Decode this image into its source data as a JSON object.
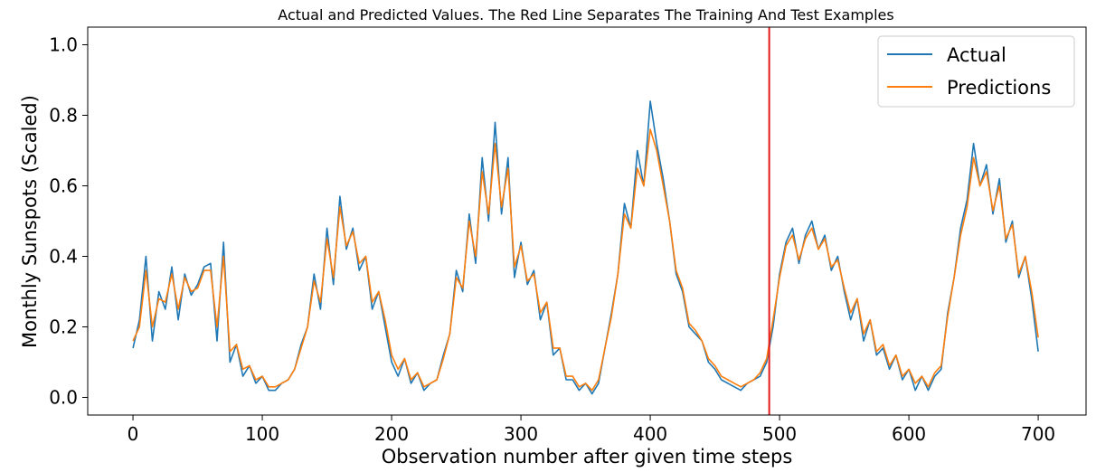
{
  "chart_data": {
    "type": "line",
    "title": "Actual and Predicted Values. The Red Line Separates The Training And Test Examples",
    "xlabel": "Observation number after given time steps",
    "ylabel": "Monthly Sunspots (Scaled)",
    "xlim": [
      -35,
      737
    ],
    "ylim": [
      -0.05,
      1.05
    ],
    "xticks": [
      0,
      100,
      200,
      300,
      400,
      500,
      600,
      700
    ],
    "yticks": [
      0.0,
      0.2,
      0.4,
      0.6,
      0.8,
      1.0
    ],
    "xtick_labels": [
      "0",
      "100",
      "200",
      "300",
      "400",
      "500",
      "600",
      "700"
    ],
    "ytick_labels": [
      "0.0",
      "0.2",
      "0.4",
      "0.6",
      "0.8",
      "1.0"
    ],
    "grid": false,
    "legend_position": "top-right",
    "split_line": {
      "x": 492,
      "color": "#e41a1c"
    },
    "series": [
      {
        "name": "Actual",
        "color": "#1f77b4",
        "x": [
          0,
          5,
          10,
          15,
          20,
          25,
          30,
          35,
          40,
          45,
          50,
          55,
          60,
          65,
          70,
          75,
          80,
          85,
          90,
          95,
          100,
          105,
          110,
          115,
          120,
          125,
          130,
          135,
          140,
          145,
          150,
          155,
          160,
          165,
          170,
          175,
          180,
          185,
          190,
          195,
          200,
          205,
          210,
          215,
          220,
          225,
          230,
          235,
          240,
          245,
          250,
          255,
          260,
          265,
          270,
          275,
          280,
          285,
          290,
          295,
          300,
          305,
          310,
          315,
          320,
          325,
          330,
          335,
          340,
          345,
          350,
          355,
          360,
          365,
          370,
          375,
          380,
          385,
          390,
          395,
          400,
          405,
          410,
          415,
          420,
          425,
          430,
          435,
          440,
          445,
          450,
          455,
          460,
          465,
          470,
          475,
          480,
          485,
          490,
          495,
          500,
          505,
          510,
          515,
          520,
          525,
          530,
          535,
          540,
          545,
          550,
          555,
          560,
          565,
          570,
          575,
          580,
          585,
          590,
          595,
          600,
          605,
          610,
          615,
          620,
          625,
          630,
          635,
          640,
          645,
          650,
          655,
          660,
          665,
          670,
          675,
          680,
          685,
          690,
          695,
          700
        ],
        "values": [
          0.14,
          0.22,
          0.4,
          0.16,
          0.3,
          0.25,
          0.37,
          0.22,
          0.35,
          0.29,
          0.32,
          0.37,
          0.38,
          0.16,
          0.44,
          0.1,
          0.15,
          0.06,
          0.09,
          0.04,
          0.06,
          0.02,
          0.02,
          0.04,
          0.05,
          0.08,
          0.15,
          0.2,
          0.35,
          0.25,
          0.48,
          0.32,
          0.57,
          0.42,
          0.48,
          0.36,
          0.4,
          0.25,
          0.3,
          0.2,
          0.1,
          0.06,
          0.11,
          0.04,
          0.07,
          0.02,
          0.04,
          0.05,
          0.12,
          0.18,
          0.36,
          0.3,
          0.52,
          0.38,
          0.68,
          0.5,
          0.78,
          0.52,
          0.68,
          0.34,
          0.44,
          0.32,
          0.36,
          0.22,
          0.27,
          0.12,
          0.14,
          0.05,
          0.05,
          0.02,
          0.04,
          0.01,
          0.04,
          0.14,
          0.24,
          0.35,
          0.55,
          0.48,
          0.7,
          0.6,
          0.84,
          0.72,
          0.62,
          0.5,
          0.35,
          0.3,
          0.2,
          0.18,
          0.16,
          0.1,
          0.08,
          0.05,
          0.04,
          0.03,
          0.02,
          0.04,
          0.05,
          0.06,
          0.1,
          0.2,
          0.35,
          0.44,
          0.48,
          0.38,
          0.46,
          0.5,
          0.42,
          0.46,
          0.36,
          0.4,
          0.3,
          0.22,
          0.28,
          0.16,
          0.22,
          0.12,
          0.14,
          0.08,
          0.12,
          0.05,
          0.08,
          0.02,
          0.06,
          0.02,
          0.06,
          0.08,
          0.24,
          0.34,
          0.48,
          0.56,
          0.72,
          0.6,
          0.66,
          0.52,
          0.62,
          0.44,
          0.5,
          0.34,
          0.4,
          0.28,
          0.13
        ]
      },
      {
        "name": "Predictions",
        "color": "#ff7f0e",
        "x": [
          0,
          5,
          10,
          15,
          20,
          25,
          30,
          35,
          40,
          45,
          50,
          55,
          60,
          65,
          70,
          75,
          80,
          85,
          90,
          95,
          100,
          105,
          110,
          115,
          120,
          125,
          130,
          135,
          140,
          145,
          150,
          155,
          160,
          165,
          170,
          175,
          180,
          185,
          190,
          195,
          200,
          205,
          210,
          215,
          220,
          225,
          230,
          235,
          240,
          245,
          250,
          255,
          260,
          265,
          270,
          275,
          280,
          285,
          290,
          295,
          300,
          305,
          310,
          315,
          320,
          325,
          330,
          335,
          340,
          345,
          350,
          355,
          360,
          365,
          370,
          375,
          380,
          385,
          390,
          395,
          400,
          405,
          410,
          415,
          420,
          425,
          430,
          435,
          440,
          445,
          450,
          455,
          460,
          465,
          470,
          475,
          480,
          485,
          490,
          495,
          500,
          505,
          510,
          515,
          520,
          525,
          530,
          535,
          540,
          545,
          550,
          555,
          560,
          565,
          570,
          575,
          580,
          585,
          590,
          595,
          600,
          605,
          610,
          615,
          620,
          625,
          630,
          635,
          640,
          645,
          650,
          655,
          660,
          665,
          670,
          675,
          680,
          685,
          690,
          695,
          700
        ],
        "values": [
          0.16,
          0.2,
          0.36,
          0.2,
          0.28,
          0.27,
          0.35,
          0.25,
          0.34,
          0.3,
          0.31,
          0.36,
          0.36,
          0.2,
          0.4,
          0.13,
          0.15,
          0.08,
          0.09,
          0.05,
          0.06,
          0.03,
          0.03,
          0.04,
          0.05,
          0.08,
          0.14,
          0.2,
          0.33,
          0.27,
          0.45,
          0.34,
          0.54,
          0.43,
          0.47,
          0.38,
          0.4,
          0.27,
          0.3,
          0.22,
          0.12,
          0.08,
          0.11,
          0.05,
          0.07,
          0.03,
          0.04,
          0.05,
          0.11,
          0.18,
          0.34,
          0.31,
          0.5,
          0.4,
          0.64,
          0.52,
          0.72,
          0.54,
          0.65,
          0.37,
          0.43,
          0.33,
          0.35,
          0.24,
          0.27,
          0.14,
          0.14,
          0.06,
          0.06,
          0.03,
          0.04,
          0.02,
          0.05,
          0.14,
          0.23,
          0.35,
          0.52,
          0.48,
          0.65,
          0.6,
          0.76,
          0.7,
          0.6,
          0.5,
          0.36,
          0.31,
          0.21,
          0.19,
          0.16,
          0.11,
          0.09,
          0.06,
          0.05,
          0.04,
          0.03,
          0.04,
          0.05,
          0.07,
          0.11,
          0.22,
          0.34,
          0.43,
          0.46,
          0.39,
          0.45,
          0.48,
          0.42,
          0.45,
          0.37,
          0.39,
          0.31,
          0.24,
          0.28,
          0.18,
          0.22,
          0.13,
          0.15,
          0.09,
          0.12,
          0.06,
          0.08,
          0.04,
          0.06,
          0.03,
          0.07,
          0.09,
          0.23,
          0.34,
          0.46,
          0.54,
          0.68,
          0.6,
          0.64,
          0.53,
          0.6,
          0.45,
          0.49,
          0.35,
          0.4,
          0.3,
          0.17
        ]
      }
    ]
  }
}
